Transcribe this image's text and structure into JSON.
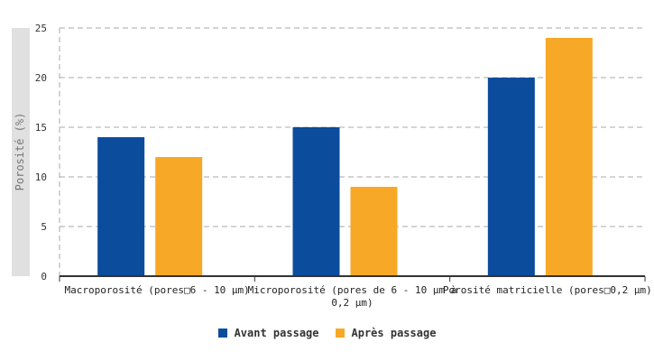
{
  "chart_data": {
    "type": "bar",
    "ylabel": "Porosité (%)",
    "ylim": [
      0,
      25
    ],
    "yticks": [
      0,
      5,
      10,
      15,
      20,
      25
    ],
    "grid": true,
    "legend_position": "bottom",
    "categories": [
      [
        "Macroporosité (pores□6 - 10 µm)"
      ],
      [
        "Microporosité (pores de 6 - 10 µm à",
        "0,2 µm)"
      ],
      [
        "Porosité matricielle (pores□0,2 µm)"
      ]
    ],
    "series": [
      {
        "name": "Avant passage",
        "color": "#0b4c9c",
        "values": [
          14,
          15,
          20
        ]
      },
      {
        "name": "Après passage",
        "color": "#f7a826",
        "values": [
          12,
          9,
          24
        ]
      }
    ]
  }
}
